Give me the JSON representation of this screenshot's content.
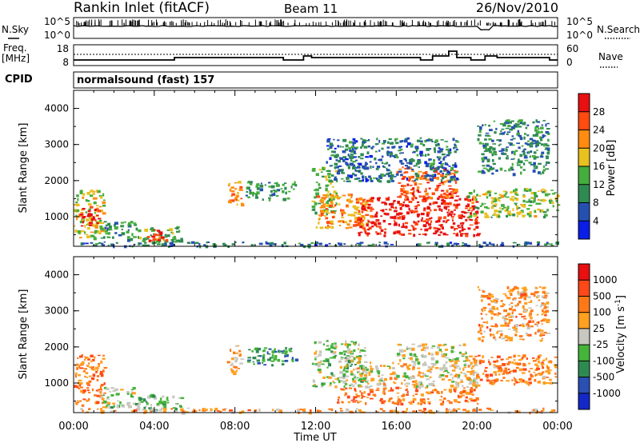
{
  "header": {
    "station": "Rankin Inlet (fitACF)",
    "beam": "Beam 11",
    "date": "26/Nov/2010"
  },
  "nsky_panel": {
    "left_label": "N.Sky",
    "left_ticks": [
      "10^5",
      "10^0"
    ],
    "right_ticks": [
      "10^5",
      "10^0"
    ],
    "right_label": "N.Search"
  },
  "freq_panel": {
    "left_label_1": "Freq.",
    "left_label_2": "[MHz]",
    "left_ticks": [
      "18",
      "8"
    ],
    "right_ticks": [
      "60",
      "0"
    ],
    "right_label": "Nave"
  },
  "cpid": {
    "label": "CPID",
    "value": "normalsound (fast) 157"
  },
  "colors": {
    "power": [
      "#0a1fe6",
      "#2650b0",
      "#2f8a52",
      "#45ad3c",
      "#e8c020",
      "#ff8c10",
      "#ff4a10",
      "#e81010"
    ],
    "velocity": [
      "#1428c8",
      "#2a50b4",
      "#2f8a52",
      "#45b43a",
      "#c8c8c0",
      "#ffa020",
      "#ff7818",
      "#ff4818",
      "#e81010"
    ]
  },
  "chart_data": [
    {
      "type": "heatmap",
      "name": "power",
      "ylabel": "Slant Range [km]",
      "yticks": [
        "1000",
        "2000",
        "3000",
        "4000"
      ],
      "ylim": [
        180,
        4500
      ],
      "xlim": [
        0,
        24
      ],
      "colorbar_label": "Power [dB]",
      "colorbar_ticks": [
        "4",
        "8",
        "12",
        "16",
        "20",
        "24",
        "28"
      ],
      "colorbar_range": [
        0,
        32
      ],
      "blobs": [
        {
          "t": [
            0.0,
            1.5
          ],
          "r": [
            400,
            1750
          ],
          "level": 0.55
        },
        {
          "t": [
            0.2,
            1.2
          ],
          "r": [
            750,
            1300
          ],
          "level": 0.93
        },
        {
          "t": [
            1.3,
            3.0
          ],
          "r": [
            350,
            900
          ],
          "level": 0.35
        },
        {
          "t": [
            3.0,
            5.3
          ],
          "r": [
            280,
            750
          ],
          "level": 0.4
        },
        {
          "t": [
            3.6,
            4.8
          ],
          "r": [
            350,
            650
          ],
          "level": 0.85
        },
        {
          "t": [
            7.6,
            8.3
          ],
          "r": [
            1300,
            2050
          ],
          "level": 0.7
        },
        {
          "t": [
            8.5,
            11.0
          ],
          "r": [
            1500,
            2000
          ],
          "level": 0.35
        },
        {
          "t": [
            11.8,
            13.0
          ],
          "r": [
            1100,
            2400
          ],
          "level": 0.45
        },
        {
          "t": [
            12.0,
            14.8
          ],
          "r": [
            700,
            1650
          ],
          "level": 0.7
        },
        {
          "t": [
            14.0,
            20.0
          ],
          "r": [
            500,
            1600
          ],
          "level": 0.93
        },
        {
          "t": [
            16.0,
            19.0
          ],
          "r": [
            1500,
            2400
          ],
          "level": 0.8
        },
        {
          "t": [
            19.5,
            24.0
          ],
          "r": [
            1000,
            1800
          ],
          "level": 0.5
        },
        {
          "t": [
            20.0,
            23.5
          ],
          "r": [
            2200,
            3700
          ],
          "level": 0.3
        },
        {
          "t": [
            12.5,
            19.0
          ],
          "r": [
            2000,
            3200
          ],
          "level": 0.25
        },
        {
          "t": [
            0.0,
            24.0
          ],
          "r": [
            200,
            320
          ],
          "level": 0.25
        }
      ]
    },
    {
      "type": "heatmap",
      "name": "velocity",
      "ylabel": "Slant Range [km]",
      "yticks": [
        "1000",
        "2000",
        "3000",
        "4000"
      ],
      "ylim": [
        180,
        4500
      ],
      "xlim": [
        0,
        24
      ],
      "colorbar_label": "Velocity [m s",
      "colorbar_label_superscript": "-1",
      "colorbar_label_end": "]",
      "colorbar_ticks": [
        "1000",
        "500",
        "100",
        "25",
        "-25",
        "-100",
        "-500",
        "-1000"
      ],
      "blobs": [
        {
          "t": [
            0.0,
            1.5
          ],
          "r": [
            400,
            1800
          ],
          "level": 0.72
        },
        {
          "t": [
            1.3,
            3.0
          ],
          "r": [
            350,
            900
          ],
          "level": 0.45
        },
        {
          "t": [
            3.0,
            5.3
          ],
          "r": [
            250,
            700
          ],
          "level": 0.4
        },
        {
          "t": [
            7.6,
            8.3
          ],
          "r": [
            1300,
            2050
          ],
          "level": 0.6
        },
        {
          "t": [
            8.5,
            11.0
          ],
          "r": [
            1500,
            2000
          ],
          "level": 0.3
        },
        {
          "t": [
            11.8,
            14.5
          ],
          "r": [
            900,
            2200
          ],
          "level": 0.45
        },
        {
          "t": [
            13.0,
            20.0
          ],
          "r": [
            450,
            900
          ],
          "level": 0.72
        },
        {
          "t": [
            14.0,
            20.0
          ],
          "r": [
            900,
            1600
          ],
          "level": 0.55
        },
        {
          "t": [
            16.0,
            19.5
          ],
          "r": [
            1600,
            2100
          ],
          "level": 0.5
        },
        {
          "t": [
            19.5,
            24.0
          ],
          "r": [
            1000,
            1800
          ],
          "level": 0.7
        },
        {
          "t": [
            20.0,
            23.5
          ],
          "r": [
            2200,
            3700
          ],
          "level": 0.65
        },
        {
          "t": [
            0.0,
            24.0
          ],
          "r": [
            200,
            320
          ],
          "level": 0.65
        }
      ]
    }
  ],
  "x_axis": {
    "ticks": [
      "00:00",
      "04:00",
      "08:00",
      "12:00",
      "16:00",
      "20:00",
      "00:00"
    ],
    "label": "Time UT"
  }
}
